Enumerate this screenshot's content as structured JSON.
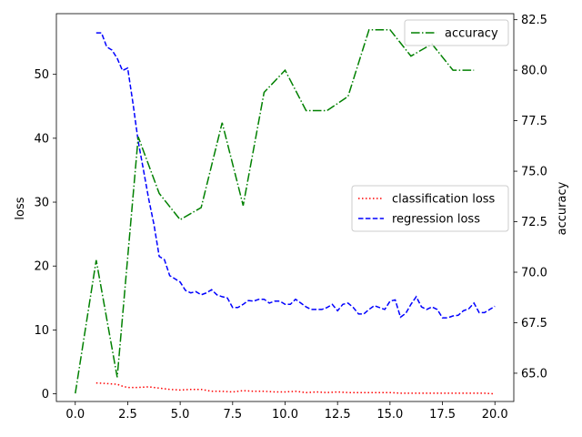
{
  "chart_data": {
    "type": "line",
    "title": "",
    "xlabel": "",
    "ylabel_left": "loss",
    "ylabel_right": "accuracy",
    "xlim": [
      -0.9,
      20.9
    ],
    "ylim_left": [
      -1.2,
      59.5
    ],
    "ylim_right": [
      63.6,
      82.8
    ],
    "x_ticks": [
      0.0,
      2.5,
      5.0,
      7.5,
      10.0,
      12.5,
      15.0,
      17.5,
      20.0
    ],
    "x_tick_labels": [
      "0.0",
      "2.5",
      "5.0",
      "7.5",
      "10.0",
      "12.5",
      "15.0",
      "17.5",
      "20.0"
    ],
    "left_ticks": [
      0,
      10,
      20,
      30,
      40,
      50
    ],
    "left_tick_labels": [
      "0",
      "10",
      "20",
      "30",
      "40",
      "50"
    ],
    "right_ticks": [
      65.0,
      67.5,
      70.0,
      72.5,
      75.0,
      77.5,
      80.0,
      82.5
    ],
    "right_tick_labels": [
      "65.0",
      "67.5",
      "70.0",
      "72.5",
      "75.0",
      "77.5",
      "80.0",
      "82.5"
    ],
    "grid": false,
    "series": [
      {
        "name": "classification loss",
        "axis": "left",
        "color": "#ff0000",
        "style": "dotted",
        "points": [
          [
            1.0,
            1.7
          ],
          [
            1.5,
            1.6
          ],
          [
            2.0,
            1.5
          ],
          [
            2.25,
            1.2
          ],
          [
            2.5,
            1.0
          ],
          [
            3.0,
            1.0
          ],
          [
            3.5,
            1.1
          ],
          [
            4.0,
            0.9
          ],
          [
            4.5,
            0.7
          ],
          [
            5.0,
            0.6
          ],
          [
            5.5,
            0.7
          ],
          [
            6.0,
            0.7
          ],
          [
            6.5,
            0.4
          ],
          [
            7.0,
            0.4
          ],
          [
            7.5,
            0.3
          ],
          [
            8.0,
            0.5
          ],
          [
            8.5,
            0.4
          ],
          [
            9.0,
            0.4
          ],
          [
            9.5,
            0.3
          ],
          [
            10.0,
            0.3
          ],
          [
            10.5,
            0.4
          ],
          [
            11.0,
            0.2
          ],
          [
            11.5,
            0.3
          ],
          [
            12.0,
            0.2
          ],
          [
            12.5,
            0.3
          ],
          [
            13.0,
            0.2
          ],
          [
            13.5,
            0.2
          ],
          [
            14.0,
            0.2
          ],
          [
            14.5,
            0.2
          ],
          [
            15.0,
            0.2
          ],
          [
            15.5,
            0.1
          ],
          [
            16.0,
            0.1
          ],
          [
            16.5,
            0.1
          ],
          [
            17.0,
            0.1
          ],
          [
            17.5,
            0.1
          ],
          [
            18.0,
            0.1
          ],
          [
            18.5,
            0.1
          ],
          [
            19.0,
            0.1
          ],
          [
            19.5,
            0.1
          ],
          [
            20.0,
            0.0
          ]
        ]
      },
      {
        "name": "regression loss",
        "axis": "left",
        "color": "#0000ff",
        "style": "dashed",
        "points": [
          [
            1.0,
            56.5
          ],
          [
            1.25,
            56.5
          ],
          [
            1.5,
            54.3
          ],
          [
            1.75,
            53.8
          ],
          [
            2.0,
            52.5
          ],
          [
            2.25,
            50.6
          ],
          [
            2.5,
            51.0
          ],
          [
            2.75,
            45.5
          ],
          [
            3.0,
            39.5
          ],
          [
            3.25,
            35.0
          ],
          [
            3.5,
            30.5
          ],
          [
            3.75,
            26.5
          ],
          [
            4.0,
            21.5
          ],
          [
            4.25,
            21.0
          ],
          [
            4.5,
            18.5
          ],
          [
            4.75,
            18.0
          ],
          [
            5.0,
            17.5
          ],
          [
            5.25,
            16.2
          ],
          [
            5.5,
            15.8
          ],
          [
            5.75,
            16.0
          ],
          [
            6.0,
            15.5
          ],
          [
            6.25,
            15.8
          ],
          [
            6.5,
            16.3
          ],
          [
            6.75,
            15.5
          ],
          [
            7.0,
            15.2
          ],
          [
            7.25,
            15.0
          ],
          [
            7.5,
            13.5
          ],
          [
            7.75,
            13.5
          ],
          [
            8.0,
            14.0
          ],
          [
            8.25,
            14.6
          ],
          [
            8.5,
            14.5
          ],
          [
            8.75,
            14.8
          ],
          [
            9.0,
            14.8
          ],
          [
            9.25,
            14.2
          ],
          [
            9.5,
            14.5
          ],
          [
            9.75,
            14.5
          ],
          [
            10.0,
            14.0
          ],
          [
            10.25,
            14.0
          ],
          [
            10.5,
            14.8
          ],
          [
            10.75,
            14.2
          ],
          [
            11.0,
            13.6
          ],
          [
            11.25,
            13.2
          ],
          [
            11.5,
            13.2
          ],
          [
            11.75,
            13.2
          ],
          [
            12.0,
            13.5
          ],
          [
            12.25,
            14.0
          ],
          [
            12.5,
            13.0
          ],
          [
            12.75,
            14.0
          ],
          [
            13.0,
            14.2
          ],
          [
            13.25,
            13.5
          ],
          [
            13.5,
            12.5
          ],
          [
            13.75,
            12.5
          ],
          [
            14.0,
            13.2
          ],
          [
            14.25,
            13.8
          ],
          [
            14.5,
            13.5
          ],
          [
            14.75,
            13.2
          ],
          [
            15.0,
            14.5
          ],
          [
            15.25,
            14.7
          ],
          [
            15.5,
            12.0
          ],
          [
            15.75,
            12.6
          ],
          [
            16.0,
            14.0
          ],
          [
            16.25,
            15.2
          ],
          [
            16.5,
            13.6
          ],
          [
            16.75,
            13.2
          ],
          [
            17.0,
            13.6
          ],
          [
            17.25,
            13.2
          ],
          [
            17.5,
            11.9
          ],
          [
            17.75,
            11.9
          ],
          [
            18.0,
            12.2
          ],
          [
            18.25,
            12.3
          ],
          [
            18.5,
            13.0
          ],
          [
            18.75,
            13.3
          ],
          [
            19.0,
            14.2
          ],
          [
            19.25,
            12.7
          ],
          [
            19.5,
            12.7
          ],
          [
            19.75,
            13.2
          ],
          [
            20.0,
            13.7
          ]
        ]
      },
      {
        "name": "accuracy",
        "axis": "right",
        "color": "#008000",
        "style": "dashdot",
        "points": [
          [
            0.0,
            64.0
          ],
          [
            1.0,
            70.6
          ],
          [
            2.0,
            64.8
          ],
          [
            3.0,
            76.7
          ],
          [
            4.0,
            73.9
          ],
          [
            5.0,
            72.6
          ],
          [
            6.0,
            73.2
          ],
          [
            7.0,
            77.4
          ],
          [
            8.0,
            73.3
          ],
          [
            9.0,
            78.9
          ],
          [
            10.0,
            80.0
          ],
          [
            11.0,
            78.0
          ],
          [
            12.0,
            78.0
          ],
          [
            13.0,
            78.7
          ],
          [
            14.0,
            82.0
          ],
          [
            15.0,
            82.0
          ],
          [
            16.0,
            80.7
          ],
          [
            17.0,
            81.3
          ],
          [
            18.0,
            80.0
          ],
          [
            19.0,
            80.0
          ]
        ]
      }
    ],
    "legend_top": {
      "placement": "upper right",
      "entries": [
        "accuracy"
      ]
    },
    "legend_mid": {
      "placement": "center right",
      "entries": [
        "classification loss",
        "regression loss"
      ]
    }
  }
}
